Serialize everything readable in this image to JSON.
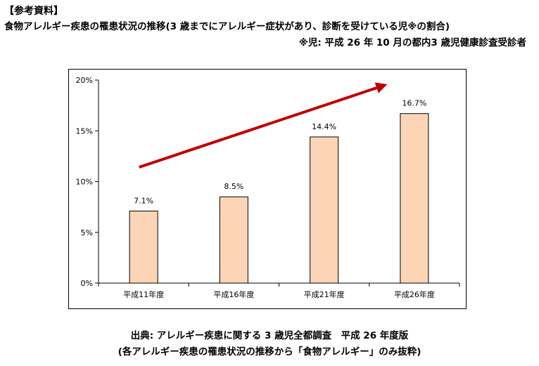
{
  "header": {
    "label": "【参考資料】",
    "title": "食物アレルギー疾患の罹患状況の推移(3 歳までにアレルギー症状があり、診断を受けている児※の割合)",
    "note": "※児: 平成 26 年 10 月の都内3 歳児健康診査受診者"
  },
  "chart_data": {
    "type": "bar",
    "categories": [
      "平成11年度",
      "平成16年度",
      "平成21年度",
      "平成26年度"
    ],
    "values": [
      7.1,
      8.5,
      14.4,
      16.7
    ],
    "data_labels": [
      "7.1%",
      "8.5%",
      "14.4%",
      "16.7%"
    ],
    "ylim": [
      0,
      20
    ],
    "yticks": [
      0,
      5,
      10,
      15,
      20
    ],
    "ytick_labels": [
      "0%",
      "5%",
      "10%",
      "15%",
      "20%"
    ],
    "bar_color": "#FBD5B5",
    "bar_edge_color": "#000000",
    "trend_arrow_color": "#C00000",
    "gridlines": false
  },
  "footer": {
    "source": "出典: アレルギー疾患に関する 3 歳児全都調査　平成 26 年度版",
    "excerpt": "(各アレルギー疾患の罹患状況の推移から「食物アレルギー」のみ抜粋)"
  }
}
